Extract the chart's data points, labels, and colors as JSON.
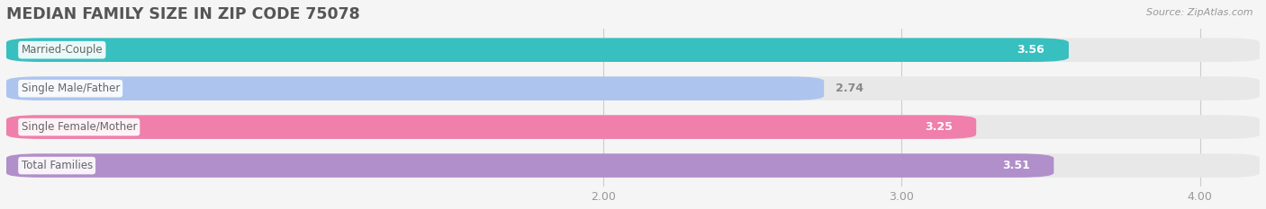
{
  "title": "MEDIAN FAMILY SIZE IN ZIP CODE 75078",
  "source": "Source: ZipAtlas.com",
  "categories": [
    "Married-Couple",
    "Single Male/Father",
    "Single Female/Mother",
    "Total Families"
  ],
  "values": [
    3.56,
    2.74,
    3.25,
    3.51
  ],
  "bar_colors": [
    "#38bfbf",
    "#adc4ef",
    "#f07fab",
    "#b08fca"
  ],
  "bar_bg_color": "#e8e8e8",
  "xlim": [
    0.0,
    4.2
  ],
  "xstart": 0.0,
  "xticks": [
    2.0,
    3.0,
    4.0
  ],
  "xtick_labels": [
    "2.00",
    "3.00",
    "4.00"
  ],
  "category_label_color": "#666666",
  "title_color": "#555555",
  "title_fontsize": 12.5,
  "bar_height": 0.62,
  "background_color": "#f5f5f5",
  "value_inside_color": "#ffffff",
  "value_outside_color": "#888888"
}
